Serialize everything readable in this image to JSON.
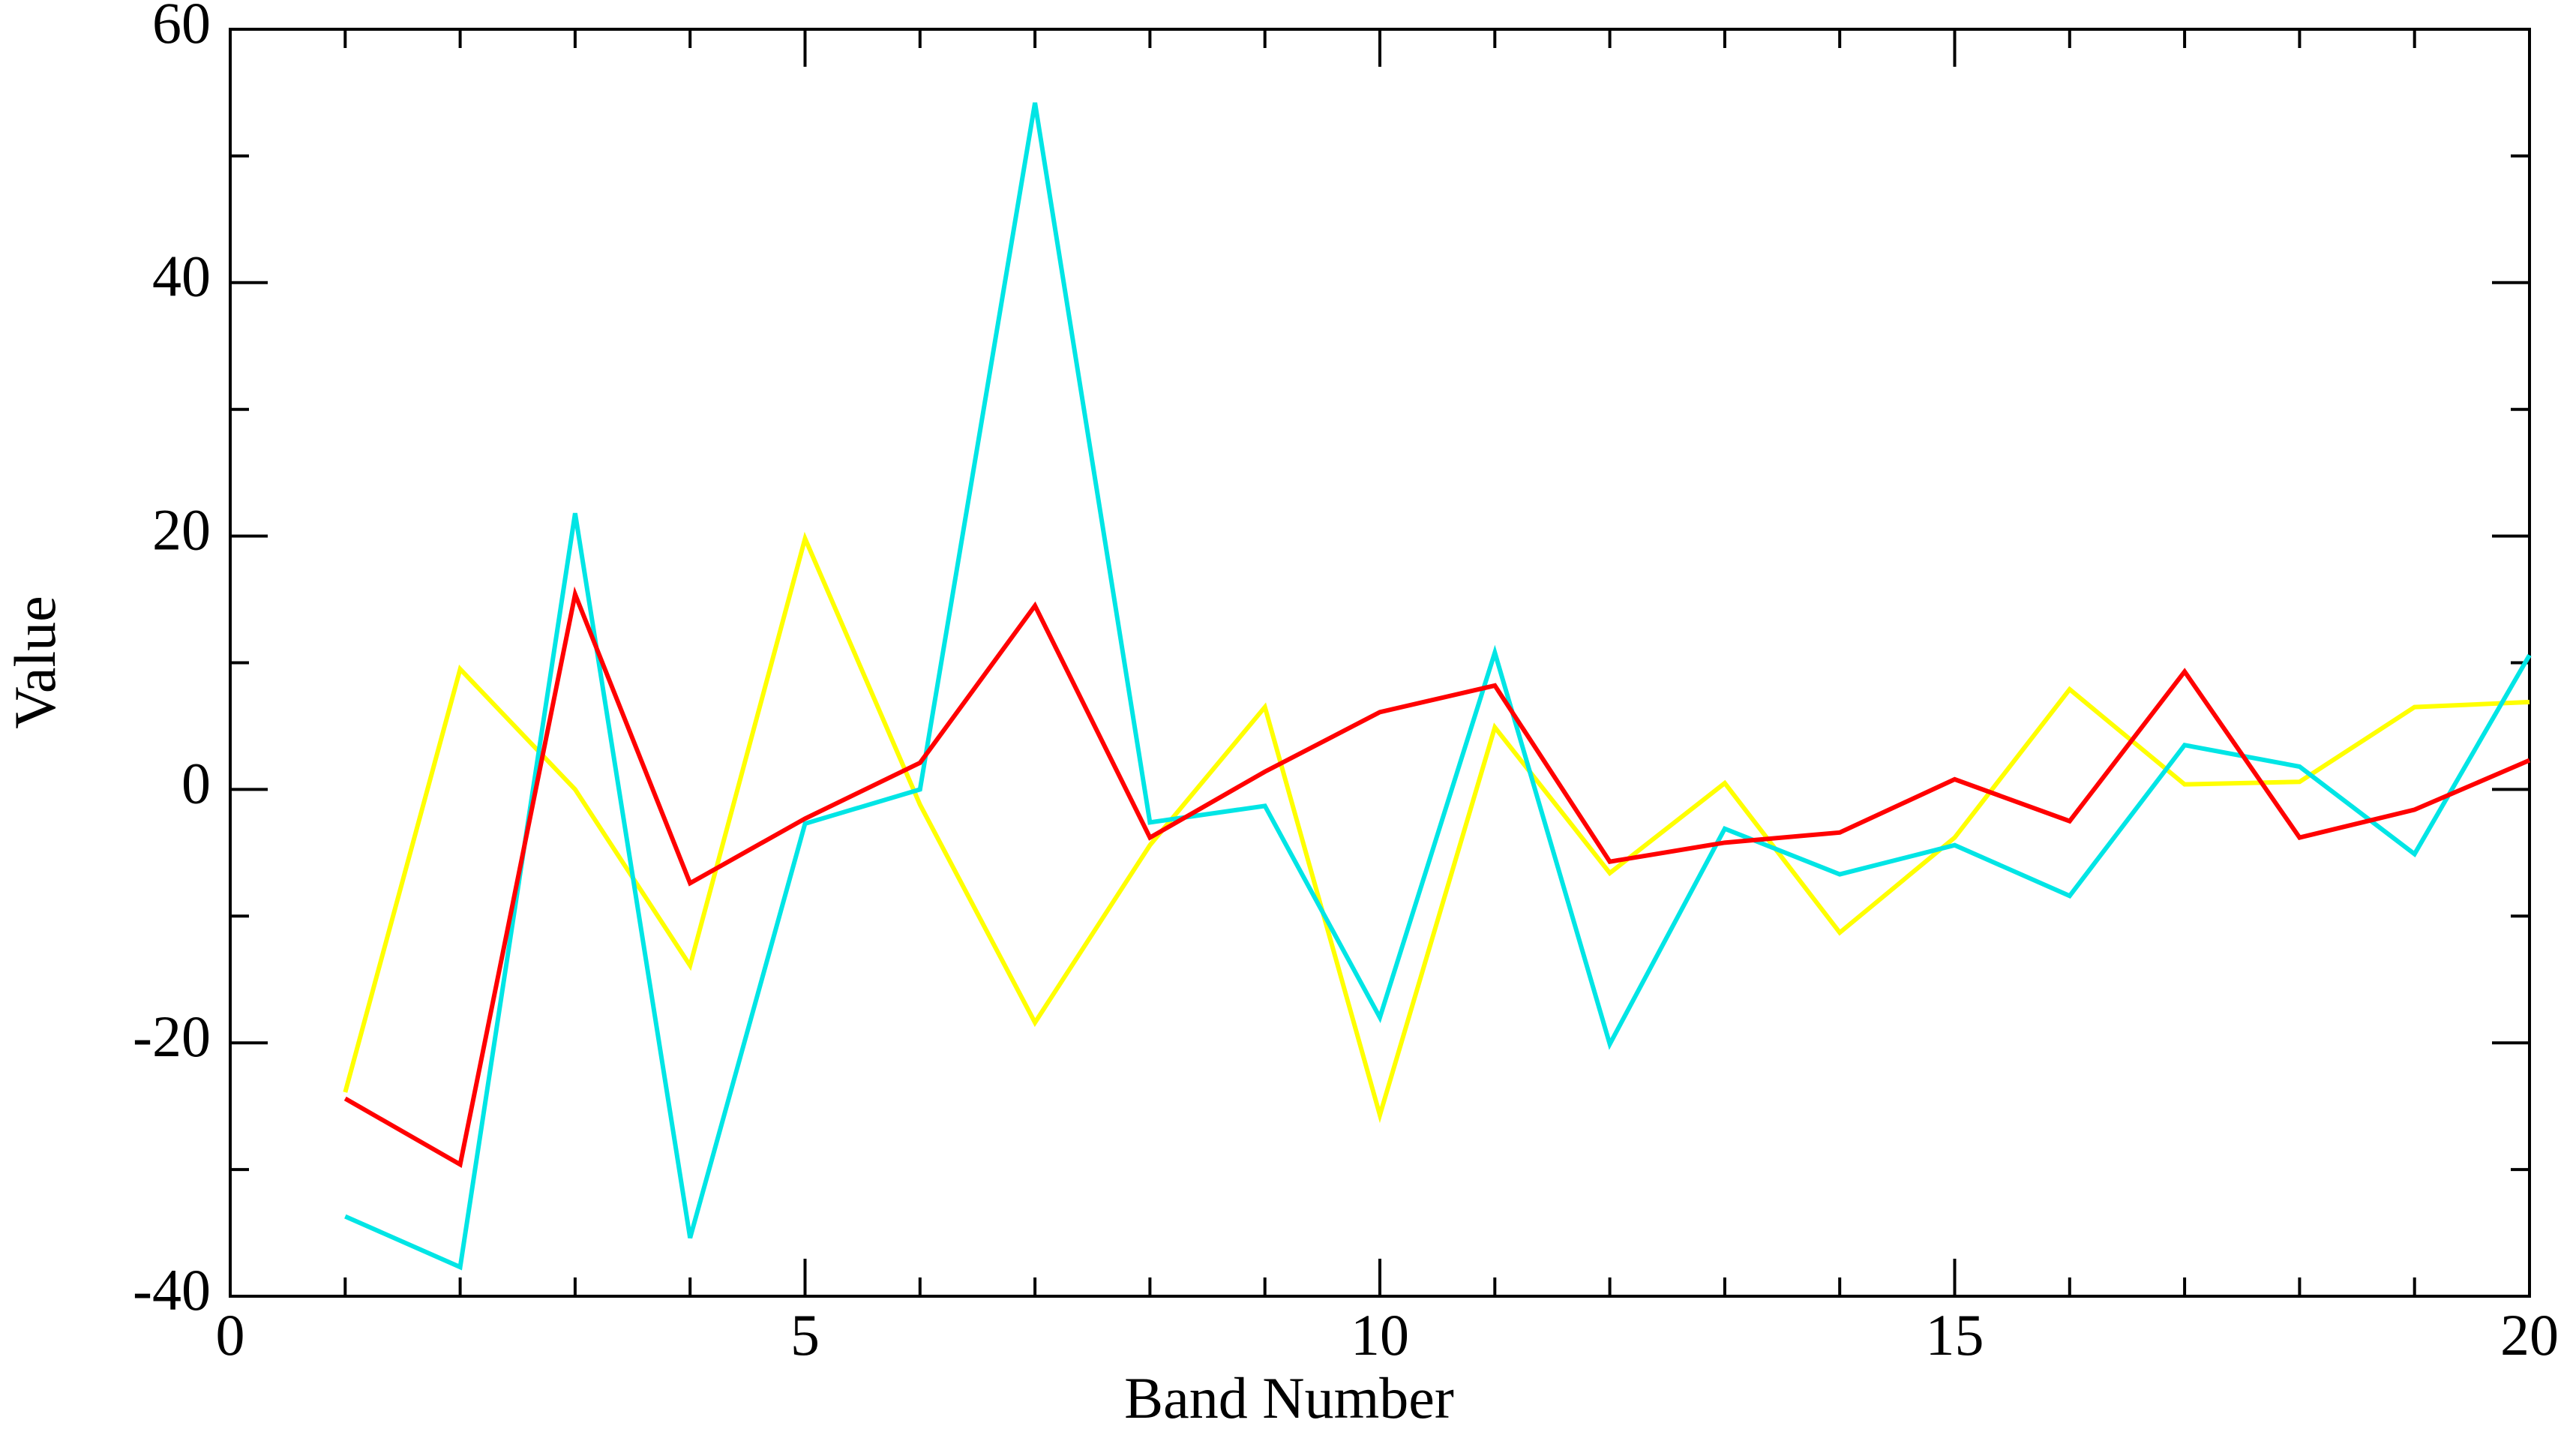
{
  "chart_data": {
    "type": "line",
    "xlabel": "Band Number",
    "ylabel": "Value",
    "x": [
      1,
      2,
      3,
      4,
      5,
      6,
      7,
      8,
      9,
      10,
      11,
      12,
      13,
      14,
      15,
      16,
      17,
      18,
      19,
      20
    ],
    "series": [
      {
        "color": "#ffff00",
        "values": [
          -23.9,
          9.5,
          0,
          -13.9,
          19.8,
          -1.2,
          -18.4,
          -4.4,
          6.5,
          -25.7,
          4.9,
          -6.6,
          0.5,
          -11.3,
          -3.8,
          7.9,
          0.4,
          0.6,
          6.5,
          6.9
        ]
      },
      {
        "color": "#00e5e5",
        "values": [
          -33.7,
          -37.7,
          21.8,
          -35.4,
          -2.7,
          0,
          54.2,
          -2.6,
          -1.3,
          -18.0,
          10.8,
          -20.1,
          -3.1,
          -6.7,
          -4.4,
          -8.4,
          3.5,
          1.8,
          -5.1,
          10.6
        ]
      },
      {
        "color": "#ff0000",
        "values": [
          -24.4,
          -29.6,
          15.4,
          -7.4,
          -2.3,
          2.1,
          14.5,
          -3.8,
          1.4,
          6.1,
          8.2,
          -5.7,
          -4.2,
          -3.4,
          0.8,
          -2.5,
          9.3,
          -3.8,
          -1.6,
          2.3
        ]
      }
    ],
    "xlim": [
      0,
      20
    ],
    "ylim": [
      -40,
      60
    ],
    "xticks": [
      0,
      5,
      10,
      15,
      20
    ],
    "yticks": [
      -40,
      -20,
      0,
      20,
      40,
      60
    ],
    "xminorticks": [
      1,
      2,
      3,
      4,
      6,
      7,
      8,
      9,
      11,
      12,
      13,
      14,
      16,
      17,
      18,
      19
    ],
    "yminorticks": [
      -30,
      -10,
      10,
      30,
      50
    ],
    "grid": false
  }
}
